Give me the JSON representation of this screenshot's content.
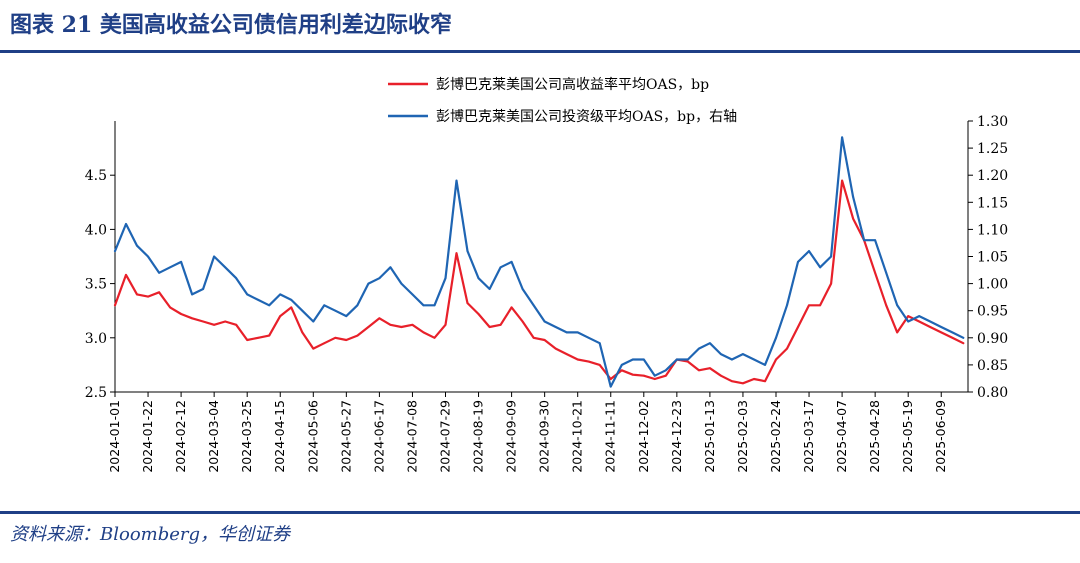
{
  "figure": {
    "title": "图表 21 美国高收益公司债信用利差边际收窄",
    "source": "资料来源：Bloomberg，华创证券"
  },
  "colors": {
    "hy": "#e8202a",
    "ig": "#1f65b3",
    "accent": "#1f3f86"
  },
  "chart_data": {
    "type": "line",
    "x_tick_labels": [
      "2024-01-01",
      "2024-01-22",
      "2024-02-12",
      "2024-03-04",
      "2024-03-25",
      "2024-04-15",
      "2024-05-06",
      "2024-05-27",
      "2024-06-17",
      "2024-07-08",
      "2024-07-29",
      "2024-08-19",
      "2024-09-09",
      "2024-09-30",
      "2024-10-21",
      "2024-11-11",
      "2024-12-02",
      "2024-12-23",
      "2025-01-13",
      "2025-02-03",
      "2025-02-24",
      "2025-03-17",
      "2025-04-07",
      "2025-04-28",
      "2025-05-19",
      "2025-06-09"
    ],
    "y_left": {
      "ticks": [
        "2.5",
        "3.0",
        "3.5",
        "4.0",
        "4.5"
      ],
      "range": [
        2.5,
        5.0
      ]
    },
    "y_right": {
      "ticks": [
        "0.80",
        "0.85",
        "0.90",
        "0.95",
        "1.00",
        "1.05",
        "1.10",
        "1.15",
        "1.20",
        "1.25",
        "1.30"
      ],
      "range": [
        0.8,
        1.3
      ]
    },
    "grid": false,
    "legend_position": "top-center",
    "series": [
      {
        "name": "彭博巴克莱美国公司高收益率平均OAS，bp",
        "axis": "left",
        "x": [
          "2024-01-01",
          "2024-01-08",
          "2024-01-15",
          "2024-01-22",
          "2024-01-29",
          "2024-02-05",
          "2024-02-12",
          "2024-02-19",
          "2024-02-26",
          "2024-03-04",
          "2024-03-11",
          "2024-03-18",
          "2024-03-25",
          "2024-04-01",
          "2024-04-08",
          "2024-04-15",
          "2024-04-22",
          "2024-04-29",
          "2024-05-06",
          "2024-05-13",
          "2024-05-20",
          "2024-05-27",
          "2024-06-03",
          "2024-06-10",
          "2024-06-17",
          "2024-06-24",
          "2024-07-01",
          "2024-07-08",
          "2024-07-15",
          "2024-07-22",
          "2024-07-29",
          "2024-08-05",
          "2024-08-12",
          "2024-08-19",
          "2024-08-26",
          "2024-09-02",
          "2024-09-09",
          "2024-09-16",
          "2024-09-23",
          "2024-09-30",
          "2024-10-07",
          "2024-10-14",
          "2024-10-21",
          "2024-10-28",
          "2024-11-04",
          "2024-11-11",
          "2024-11-18",
          "2024-11-25",
          "2024-12-02",
          "2024-12-09",
          "2024-12-16",
          "2024-12-23",
          "2024-12-30",
          "2025-01-06",
          "2025-01-13",
          "2025-01-20",
          "2025-01-27",
          "2025-02-03",
          "2025-02-10",
          "2025-02-17",
          "2025-02-24",
          "2025-03-03",
          "2025-03-10",
          "2025-03-17",
          "2025-03-24",
          "2025-03-31",
          "2025-04-07",
          "2025-04-14",
          "2025-04-21",
          "2025-04-28",
          "2025-05-05",
          "2025-05-12",
          "2025-05-19",
          "2025-05-26",
          "2025-06-02",
          "2025-06-09",
          "2025-06-16",
          "2025-06-23"
        ],
        "values": [
          3.3,
          3.58,
          3.4,
          3.38,
          3.42,
          3.28,
          3.22,
          3.18,
          3.15,
          3.12,
          3.15,
          3.12,
          2.98,
          3.0,
          3.02,
          3.2,
          3.28,
          3.05,
          2.9,
          2.95,
          3.0,
          2.98,
          3.02,
          3.1,
          3.18,
          3.12,
          3.1,
          3.12,
          3.05,
          3.0,
          3.12,
          3.78,
          3.32,
          3.22,
          3.1,
          3.12,
          3.28,
          3.15,
          3.0,
          2.98,
          2.9,
          2.85,
          2.8,
          2.78,
          2.75,
          2.62,
          2.7,
          2.66,
          2.65,
          2.62,
          2.65,
          2.8,
          2.78,
          2.7,
          2.72,
          2.65,
          2.6,
          2.58,
          2.62,
          2.6,
          2.8,
          2.9,
          3.1,
          3.3,
          3.3,
          3.5,
          4.45,
          4.1,
          3.9,
          3.6,
          3.3,
          3.05,
          3.2,
          3.15,
          3.1,
          3.05,
          3.0,
          2.95
        ]
      },
      {
        "name": "彭博巴克莱美国公司投资级平均OAS，bp，右轴",
        "axis": "right",
        "x": [
          "2024-01-01",
          "2024-01-08",
          "2024-01-15",
          "2024-01-22",
          "2024-01-29",
          "2024-02-05",
          "2024-02-12",
          "2024-02-19",
          "2024-02-26",
          "2024-03-04",
          "2024-03-11",
          "2024-03-18",
          "2024-03-25",
          "2024-04-01",
          "2024-04-08",
          "2024-04-15",
          "2024-04-22",
          "2024-04-29",
          "2024-05-06",
          "2024-05-13",
          "2024-05-20",
          "2024-05-27",
          "2024-06-03",
          "2024-06-10",
          "2024-06-17",
          "2024-06-24",
          "2024-07-01",
          "2024-07-08",
          "2024-07-15",
          "2024-07-22",
          "2024-07-29",
          "2024-08-05",
          "2024-08-12",
          "2024-08-19",
          "2024-08-26",
          "2024-09-02",
          "2024-09-09",
          "2024-09-16",
          "2024-09-23",
          "2024-09-30",
          "2024-10-07",
          "2024-10-14",
          "2024-10-21",
          "2024-10-28",
          "2024-11-04",
          "2024-11-11",
          "2024-11-18",
          "2024-11-25",
          "2024-12-02",
          "2024-12-09",
          "2024-12-16",
          "2024-12-23",
          "2024-12-30",
          "2025-01-06",
          "2025-01-13",
          "2025-01-20",
          "2025-01-27",
          "2025-02-03",
          "2025-02-10",
          "2025-02-17",
          "2025-02-24",
          "2025-03-03",
          "2025-03-10",
          "2025-03-17",
          "2025-03-24",
          "2025-03-31",
          "2025-04-07",
          "2025-04-14",
          "2025-04-21",
          "2025-04-28",
          "2025-05-05",
          "2025-05-12",
          "2025-05-19",
          "2025-05-26",
          "2025-06-02",
          "2025-06-09",
          "2025-06-16",
          "2025-06-23"
        ],
        "values": [
          1.06,
          1.11,
          1.07,
          1.05,
          1.02,
          1.03,
          1.04,
          0.98,
          0.99,
          1.05,
          1.03,
          1.01,
          0.98,
          0.97,
          0.96,
          0.98,
          0.97,
          0.95,
          0.93,
          0.96,
          0.95,
          0.94,
          0.96,
          1.0,
          1.01,
          1.03,
          1.0,
          0.98,
          0.96,
          0.96,
          1.01,
          1.19,
          1.06,
          1.01,
          0.99,
          1.03,
          1.04,
          0.99,
          0.96,
          0.93,
          0.92,
          0.91,
          0.91,
          0.9,
          0.89,
          0.81,
          0.85,
          0.86,
          0.86,
          0.83,
          0.84,
          0.86,
          0.86,
          0.88,
          0.89,
          0.87,
          0.86,
          0.87,
          0.86,
          0.85,
          0.9,
          0.96,
          1.04,
          1.06,
          1.03,
          1.05,
          1.27,
          1.16,
          1.08,
          1.08,
          1.02,
          0.96,
          0.93,
          0.94,
          0.93,
          0.92,
          0.91,
          0.9
        ]
      }
    ]
  }
}
